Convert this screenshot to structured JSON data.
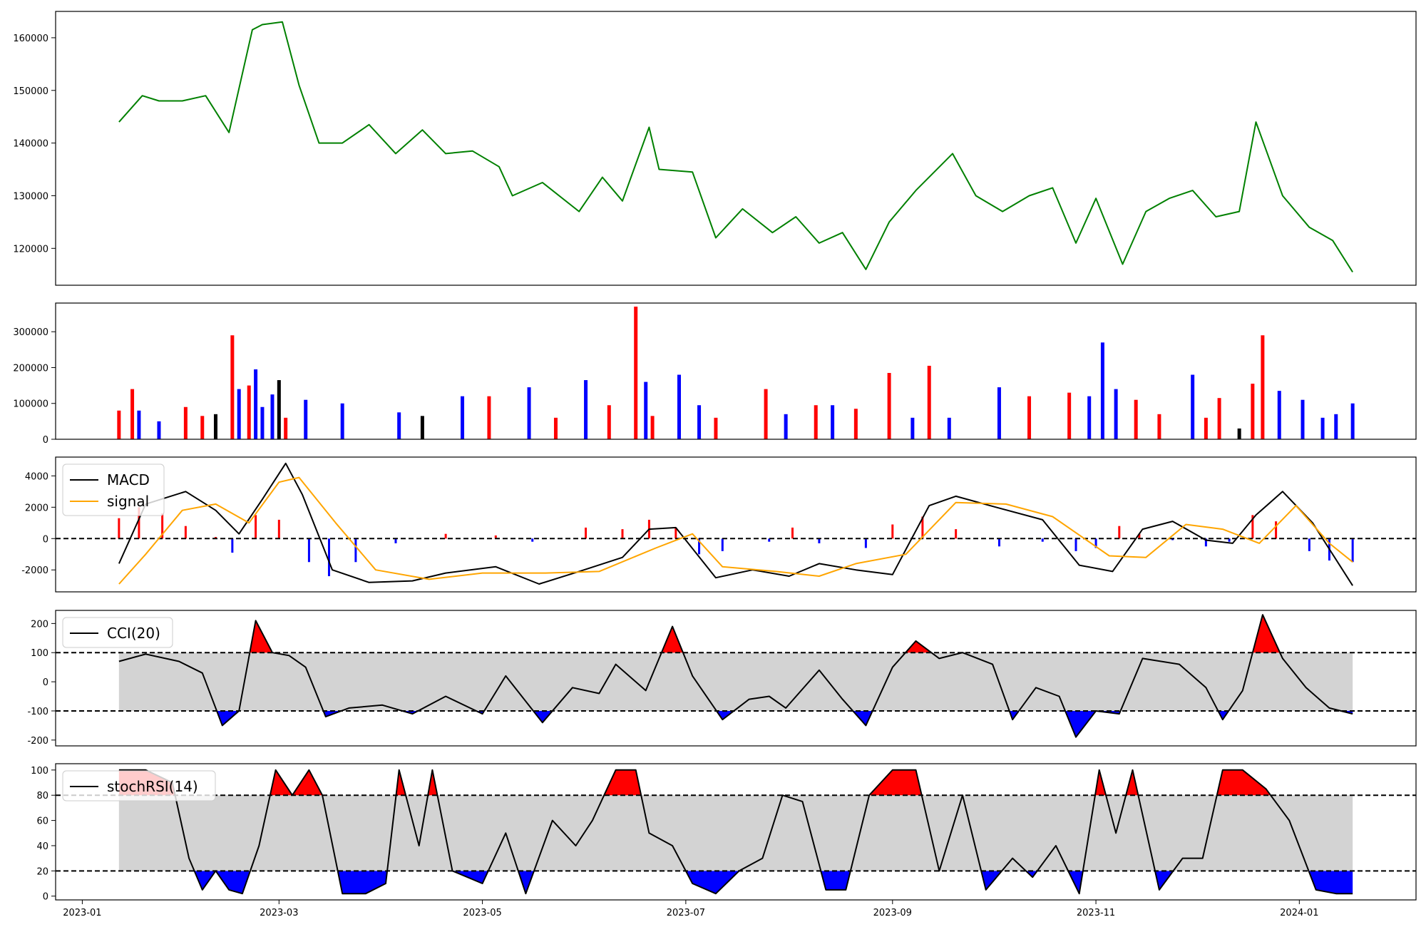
{
  "chart_data": [
    {
      "id": "price",
      "type": "line",
      "color": "#008000",
      "ylim": [
        113000,
        165000
      ],
      "yticks": [
        120000,
        130000,
        140000,
        150000,
        160000
      ],
      "series": [
        {
          "x": [
            "2023-01-12",
            "2023-01-19",
            "2023-01-24",
            "2023-01-31",
            "2023-02-07",
            "2023-02-14",
            "2023-02-21",
            "2023-02-24",
            "2023-03-02",
            "2023-03-07",
            "2023-03-13",
            "2023-03-20",
            "2023-03-28",
            "2023-04-05",
            "2023-04-13",
            "2023-04-20",
            "2023-04-28",
            "2023-05-06",
            "2023-05-10",
            "2023-05-19",
            "2023-05-30",
            "2023-06-06",
            "2023-06-12",
            "2023-06-20",
            "2023-06-23",
            "2023-07-03",
            "2023-07-10",
            "2023-07-18",
            "2023-07-27",
            "2023-08-03",
            "2023-08-10",
            "2023-08-17",
            "2023-08-24",
            "2023-08-31",
            "2023-09-08",
            "2023-09-19",
            "2023-09-26",
            "2023-10-04",
            "2023-10-12",
            "2023-10-19",
            "2023-10-26",
            "2023-11-01",
            "2023-11-09",
            "2023-11-16",
            "2023-11-23",
            "2023-11-30",
            "2023-12-07",
            "2023-12-14",
            "2023-12-19",
            "2023-12-27",
            "2024-01-04",
            "2024-01-11",
            "2024-01-17"
          ],
          "values": [
            144000,
            149000,
            148000,
            148000,
            149000,
            142000,
            161500,
            162500,
            163000,
            151000,
            140000,
            140000,
            143500,
            138000,
            142500,
            138000,
            138500,
            135500,
            130000,
            132500,
            127000,
            133500,
            129000,
            143000,
            135000,
            134500,
            122000,
            127500,
            123000,
            126000,
            121000,
            123000,
            116000,
            125000,
            131000,
            138000,
            130000,
            127000,
            130000,
            131500,
            121000,
            129500,
            117000,
            127000,
            129500,
            131000,
            126000,
            127000,
            144000,
            130000,
            124000,
            121500,
            115500
          ]
        }
      ]
    },
    {
      "id": "volume",
      "type": "bar",
      "ylim": [
        0,
        380000
      ],
      "yticks": [
        0,
        100000,
        200000,
        300000
      ],
      "bar_colors": {
        "up": "#ff0000",
        "down": "#0000ff",
        "flat": "#000000"
      },
      "series": [
        {
          "x": [
            "2023-01-12",
            "2023-01-16",
            "2023-01-18",
            "2023-01-24",
            "2023-02-01",
            "2023-02-06",
            "2023-02-10",
            "2023-02-15",
            "2023-02-17",
            "2023-02-20",
            "2023-02-22",
            "2023-02-24",
            "2023-02-27",
            "2023-03-01",
            "2023-03-03",
            "2023-03-09",
            "2023-03-20",
            "2023-04-06",
            "2023-04-13",
            "2023-04-25",
            "2023-05-03",
            "2023-05-15",
            "2023-05-23",
            "2023-06-01",
            "2023-06-08",
            "2023-06-16",
            "2023-06-19",
            "2023-06-21",
            "2023-06-29",
            "2023-07-05",
            "2023-07-10",
            "2023-07-25",
            "2023-07-31",
            "2023-08-09",
            "2023-08-14",
            "2023-08-21",
            "2023-08-31",
            "2023-09-07",
            "2023-09-12",
            "2023-09-18",
            "2023-10-03",
            "2023-10-12",
            "2023-10-24",
            "2023-10-30",
            "2023-11-03",
            "2023-11-07",
            "2023-11-13",
            "2023-11-20",
            "2023-11-30",
            "2023-12-04",
            "2023-12-08",
            "2023-12-14",
            "2023-12-18",
            "2023-12-21",
            "2023-12-26",
            "2024-01-02",
            "2024-01-08",
            "2024-01-12",
            "2024-01-17"
          ],
          "values": [
            80000,
            140000,
            80000,
            50000,
            90000,
            65000,
            70000,
            290000,
            140000,
            150000,
            195000,
            90000,
            125000,
            165000,
            60000,
            110000,
            100000,
            75000,
            65000,
            120000,
            120000,
            145000,
            60000,
            165000,
            95000,
            370000,
            160000,
            65000,
            180000,
            95000,
            60000,
            140000,
            70000,
            95000,
            95000,
            85000,
            185000,
            60000,
            205000,
            60000,
            145000,
            120000,
            130000,
            120000,
            270000,
            140000,
            110000,
            70000,
            180000,
            60000,
            115000,
            30000,
            155000,
            290000,
            135000,
            110000,
            60000,
            70000,
            100000
          ],
          "colors": [
            "up",
            "up",
            "down",
            "down",
            "up",
            "up",
            "flat",
            "up",
            "down",
            "up",
            "down",
            "down",
            "down",
            "flat",
            "up",
            "down",
            "down",
            "down",
            "flat",
            "down",
            "up",
            "down",
            "up",
            "down",
            "up",
            "up",
            "down",
            "up",
            "down",
            "down",
            "up",
            "up",
            "down",
            "up",
            "down",
            "up",
            "up",
            "down",
            "up",
            "down",
            "down",
            "up",
            "up",
            "down",
            "down",
            "down",
            "up",
            "up",
            "down",
            "up",
            "up",
            "flat",
            "up",
            "up",
            "down",
            "down",
            "down",
            "down",
            "down"
          ]
        }
      ]
    },
    {
      "id": "macd",
      "type": "line",
      "ylim": [
        -3400,
        5200
      ],
      "yticks": [
        -2000,
        0,
        2000,
        4000
      ],
      "zero_line": 0,
      "legend": {
        "position": "top-left",
        "items": [
          "MACD",
          "signal"
        ]
      },
      "series": [
        {
          "name": "MACD",
          "color": "#000000",
          "x": [
            "2023-01-12",
            "2023-01-20",
            "2023-02-01",
            "2023-02-10",
            "2023-02-17",
            "2023-02-24",
            "2023-03-03",
            "2023-03-08",
            "2023-03-17",
            "2023-03-28",
            "2023-04-10",
            "2023-04-20",
            "2023-05-05",
            "2023-05-18",
            "2023-05-30",
            "2023-06-12",
            "2023-06-20",
            "2023-06-28",
            "2023-07-10",
            "2023-07-21",
            "2023-08-01",
            "2023-08-10",
            "2023-08-21",
            "2023-09-01",
            "2023-09-12",
            "2023-09-20",
            "2023-10-02",
            "2023-10-16",
            "2023-10-27",
            "2023-11-06",
            "2023-11-15",
            "2023-11-24",
            "2023-12-04",
            "2023-12-12",
            "2023-12-19",
            "2023-12-27",
            "2024-01-05",
            "2024-01-17"
          ],
          "values": [
            -1600,
            2200,
            3000,
            1800,
            300,
            2500,
            4800,
            2800,
            -2000,
            -2800,
            -2700,
            -2200,
            -1800,
            -2900,
            -2100,
            -1200,
            600,
            700,
            -2500,
            -2000,
            -2400,
            -1600,
            -2000,
            -2300,
            2100,
            2700,
            2000,
            1200,
            -1700,
            -2100,
            600,
            1100,
            -100,
            -300,
            1500,
            3000,
            1000,
            -3000
          ]
        },
        {
          "name": "signal",
          "color": "#ffa500",
          "x": [
            "2023-01-12",
            "2023-01-20",
            "2023-01-31",
            "2023-02-10",
            "2023-02-20",
            "2023-03-01",
            "2023-03-07",
            "2023-03-18",
            "2023-03-30",
            "2023-04-15",
            "2023-05-01",
            "2023-05-20",
            "2023-06-05",
            "2023-06-22",
            "2023-07-03",
            "2023-07-12",
            "2023-07-28",
            "2023-08-10",
            "2023-08-21",
            "2023-09-05",
            "2023-09-20",
            "2023-10-05",
            "2023-10-19",
            "2023-11-05",
            "2023-11-16",
            "2023-11-28",
            "2023-12-09",
            "2023-12-20",
            "2023-12-31",
            "2024-01-10",
            "2024-01-17"
          ],
          "values": [
            -2900,
            -1000,
            1800,
            2200,
            1000,
            3600,
            3900,
            1000,
            -2000,
            -2600,
            -2200,
            -2200,
            -2100,
            -600,
            300,
            -1800,
            -2100,
            -2400,
            -1600,
            -1000,
            2300,
            2200,
            1400,
            -1100,
            -1200,
            900,
            600,
            -300,
            2100,
            -300,
            -1500
          ]
        }
      ],
      "histogram": {
        "x": [
          "2023-01-12",
          "2023-01-18",
          "2023-01-25",
          "2023-02-01",
          "2023-02-10",
          "2023-02-15",
          "2023-02-22",
          "2023-03-01",
          "2023-03-10",
          "2023-03-16",
          "2023-03-24",
          "2023-04-05",
          "2023-04-20",
          "2023-05-05",
          "2023-05-16",
          "2023-06-01",
          "2023-06-12",
          "2023-06-20",
          "2023-06-28",
          "2023-07-05",
          "2023-07-12",
          "2023-07-26",
          "2023-08-02",
          "2023-08-10",
          "2023-08-24",
          "2023-09-01",
          "2023-09-10",
          "2023-09-20",
          "2023-10-03",
          "2023-10-16",
          "2023-10-26",
          "2023-11-01",
          "2023-11-08",
          "2023-11-14",
          "2023-11-24",
          "2023-12-04",
          "2023-12-11",
          "2023-12-18",
          "2023-12-25",
          "2024-01-04",
          "2024-01-10",
          "2024-01-17"
        ],
        "values": [
          1300,
          2000,
          1600,
          800,
          100,
          -900,
          1500,
          1200,
          -1500,
          -2400,
          -1500,
          -300,
          300,
          200,
          -200,
          700,
          600,
          1200,
          700,
          -1000,
          -800,
          -200,
          700,
          -300,
          -600,
          900,
          1400,
          600,
          -500,
          -200,
          -800,
          -600,
          800,
          300,
          -100,
          -500,
          -200,
          1500,
          1100,
          -800,
          -1400,
          -1500
        ]
      }
    },
    {
      "id": "cci",
      "type": "line",
      "ylim": [
        -220,
        245
      ],
      "yticks": [
        -200,
        -100,
        0,
        100,
        200
      ],
      "band": [
        -100,
        100
      ],
      "legend": {
        "position": "top-left",
        "items": [
          "CCI(20)"
        ]
      },
      "series": [
        {
          "name": "CCI(20)",
          "color": "#000000",
          "x": [
            "2023-01-12",
            "2023-01-20",
            "2023-01-30",
            "2023-02-06",
            "2023-02-12",
            "2023-02-17",
            "2023-02-22",
            "2023-02-27",
            "2023-03-04",
            "2023-03-09",
            "2023-03-15",
            "2023-03-22",
            "2023-04-01",
            "2023-04-10",
            "2023-04-20",
            "2023-05-01",
            "2023-05-08",
            "2023-05-19",
            "2023-05-28",
            "2023-06-05",
            "2023-06-10",
            "2023-06-19",
            "2023-06-27",
            "2023-07-03",
            "2023-07-12",
            "2023-07-20",
            "2023-07-26",
            "2023-07-31",
            "2023-08-10",
            "2023-08-17",
            "2023-08-24",
            "2023-09-01",
            "2023-09-08",
            "2023-09-15",
            "2023-09-22",
            "2023-10-01",
            "2023-10-07",
            "2023-10-14",
            "2023-10-21",
            "2023-10-26",
            "2023-11-01",
            "2023-11-08",
            "2023-11-15",
            "2023-11-26",
            "2023-12-04",
            "2023-12-09",
            "2023-12-15",
            "2023-12-21",
            "2023-12-27",
            "2024-01-03",
            "2024-01-10",
            "2024-01-17"
          ],
          "values": [
            70,
            95,
            70,
            30,
            -150,
            -100,
            210,
            100,
            90,
            50,
            -120,
            -90,
            -80,
            -110,
            -50,
            -110,
            20,
            -140,
            -20,
            -40,
            60,
            -30,
            190,
            20,
            -130,
            -60,
            -50,
            -90,
            40,
            -60,
            -150,
            50,
            140,
            80,
            100,
            60,
            -130,
            -20,
            -50,
            -190,
            -100,
            -110,
            80,
            60,
            -20,
            -130,
            -30,
            230,
            80,
            -20,
            -90,
            -110
          ]
        }
      ]
    },
    {
      "id": "stochrsi",
      "type": "line",
      "ylim": [
        -3,
        105
      ],
      "yticks": [
        0,
        20,
        40,
        60,
        80,
        100
      ],
      "band": [
        20,
        80
      ],
      "legend": {
        "position": "top-left",
        "items": [
          "stochRSI(14)"
        ]
      },
      "series": [
        {
          "name": "stochRSI(14)",
          "color": "#000000",
          "x": [
            "2023-01-12",
            "2023-01-20",
            "2023-01-28",
            "2023-02-02",
            "2023-02-06",
            "2023-02-10",
            "2023-02-14",
            "2023-02-18",
            "2023-02-23",
            "2023-02-28",
            "2023-03-05",
            "2023-03-10",
            "2023-03-14",
            "2023-03-20",
            "2023-03-27",
            "2023-04-02",
            "2023-04-06",
            "2023-04-12",
            "2023-04-16",
            "2023-04-22",
            "2023-05-01",
            "2023-05-08",
            "2023-05-14",
            "2023-05-22",
            "2023-05-29",
            "2023-06-03",
            "2023-06-10",
            "2023-06-16",
            "2023-06-20",
            "2023-06-27",
            "2023-07-03",
            "2023-07-10",
            "2023-07-17",
            "2023-07-24",
            "2023-07-30",
            "2023-08-05",
            "2023-08-12",
            "2023-08-18",
            "2023-08-25",
            "2023-09-01",
            "2023-09-08",
            "2023-09-15",
            "2023-09-22",
            "2023-09-29",
            "2023-10-07",
            "2023-10-13",
            "2023-10-20",
            "2023-10-27",
            "2023-11-02",
            "2023-11-07",
            "2023-11-12",
            "2023-11-20",
            "2023-11-27",
            "2023-12-03",
            "2023-12-09",
            "2023-12-15",
            "2023-12-22",
            "2023-12-29",
            "2024-01-06",
            "2024-01-12",
            "2024-01-17"
          ],
          "values": [
            100,
            100,
            90,
            30,
            5,
            20,
            5,
            2,
            40,
            100,
            80,
            100,
            80,
            2,
            2,
            10,
            100,
            40,
            100,
            20,
            10,
            50,
            2,
            60,
            40,
            60,
            100,
            100,
            50,
            40,
            10,
            2,
            20,
            30,
            80,
            75,
            5,
            5,
            80,
            100,
            100,
            20,
            80,
            5,
            30,
            15,
            40,
            2,
            100,
            50,
            100,
            5,
            30,
            30,
            100,
            100,
            85,
            60,
            5,
            2,
            2
          ]
        }
      ]
    }
  ],
  "x_axis": {
    "ticks": [
      "2023-01",
      "2023-03",
      "2023-05",
      "2023-07",
      "2023-09",
      "2023-11",
      "2024-01"
    ]
  }
}
